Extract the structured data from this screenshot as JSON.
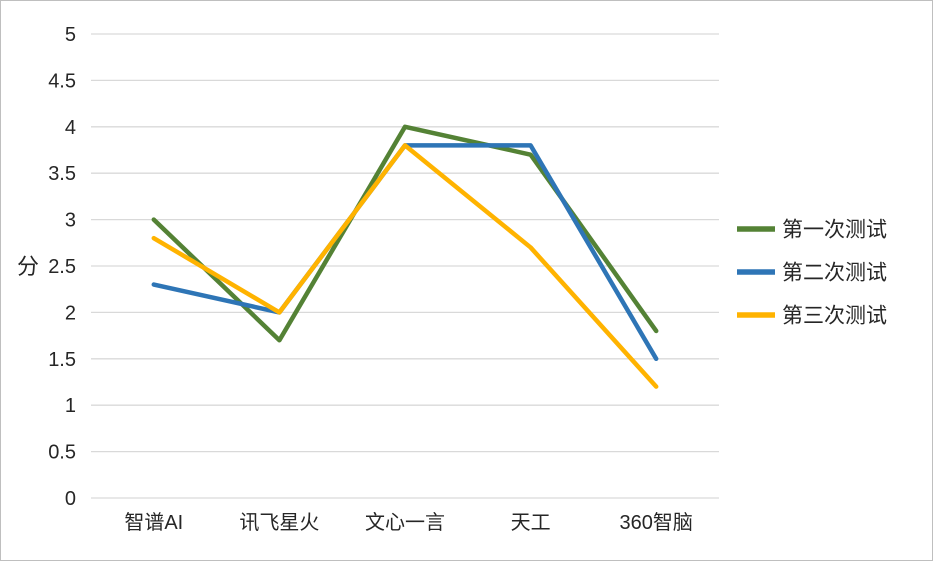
{
  "chart_data": {
    "type": "line",
    "categories": [
      "智谱AI",
      "讯飞星火",
      "文心一言",
      "天工",
      "360智脑"
    ],
    "series": [
      {
        "name": "第一次测试",
        "color": "#548235",
        "values": [
          3.0,
          1.7,
          4.0,
          3.7,
          1.8
        ]
      },
      {
        "name": "第二次测试",
        "color": "#2E75B6",
        "values": [
          2.3,
          2.0,
          3.8,
          3.8,
          1.5
        ]
      },
      {
        "name": "第三次测试",
        "color": "#FFB300",
        "values": [
          2.8,
          2.0,
          3.8,
          2.7,
          1.2
        ]
      }
    ],
    "title": "",
    "xlabel": "",
    "ylabel": "分",
    "ylim": [
      0,
      5
    ],
    "ytick_step": 0.5,
    "grid": true,
    "legend_position": "right",
    "y_tick_labels": [
      "0",
      "0.5",
      "1",
      "1.5",
      "2",
      "2.5",
      "3",
      "3.5",
      "4",
      "4.5",
      "5"
    ]
  },
  "colors": {
    "gridline": "#d9d9d9",
    "text": "#262626",
    "border": "#bfbfbf",
    "background": "#ffffff"
  }
}
